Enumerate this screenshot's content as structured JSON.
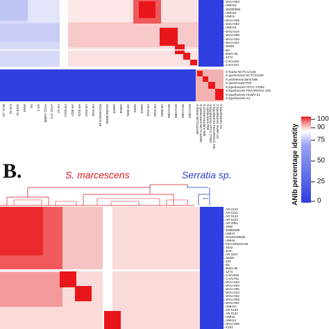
{
  "panel_b": {
    "letter": "B.",
    "group_marcescens": "S. marcescens",
    "group_serratia": "Serratia sp."
  },
  "legend": {
    "title": "ANIb percentage identity",
    "ticks": [
      "100",
      "90",
      "75",
      "50",
      "25",
      "0"
    ],
    "colors": {
      "high": "#e8161b",
      "mid": "#ffffff",
      "low": "#2f3fe0"
    }
  },
  "panel_a": {
    "row_labels_top": [
      "WVU-003",
      "UMH10",
      "SE000094",
      "UMH12",
      "UMH1",
      "WVU-005",
      "WVU-002",
      "UMH10",
      "WVU-010",
      "WVU-008",
      "WVU-004",
      "WVU-001",
      "SM39",
      "B3",
      "BWH-35",
      "1274",
      "CAV1492",
      "CAV1761"
    ],
    "row_labels_bottom": [
      "S ficaria NCTC12148",
      "S quinivorans NCTC13188",
      "S proteamaculans 568",
      "S quinivorans P60",
      "S liquefaciens ATCC 27592",
      "S liquefaciens FDAARGOS 125",
      "S liquefaciens HUMV-21",
      "S liquefaciens S1"
    ],
    "col_labels_left": [
      "NCG_14",
      "CIS-44",
      "2016-12",
      "WW4",
      "S4",
      "SS-1",
      "ATCC 13880",
      "ATCC 274",
      "AS-12",
      "AR 0124",
      "AR 0027",
      "AR 0121",
      "AR 0122",
      "AR 0131",
      "FDAARGOS 65",
      "SmUNAM836",
      "UMH9",
      "UMH8",
      "AR 0091",
      "SM25",
      "UMH3",
      "AR 0141",
      "AR 0133",
      "AR 0093",
      "WVU-009",
      "WVU-008",
      "WVU-005",
      "WVU-004"
    ],
    "col_labels_right": [
      "S ficaria NCTC12148",
      "S quinivorans NCTC13188",
      "S proteamaculans 568",
      "S quinivorans P60",
      "S liquefaciens ATCC 27592",
      "S liquefaciens FDAARGOS 125",
      "S liquefaciens HUMV-21",
      "S liquefaciens S1"
    ]
  },
  "panel_b_labels": [
    "AR 0122",
    "AR 0121",
    "AR 0123",
    "AR 0124",
    "AR 0091",
    "1692",
    "SMB2099",
    "UMH3",
    "SmUNAM836",
    "UMH9",
    "FDAARGOS 65",
    "1624",
    "114c",
    "AR 0027",
    "SM39",
    "332",
    "B3",
    "BWH-35",
    "1274",
    "CAV1492",
    "CAV1761",
    "WVU-004",
    "WVU-003",
    "WVU-005",
    "WVU-010",
    "WVU-002",
    "WVU-008",
    "WVU-001",
    "UMH10",
    "AR 0130",
    "AR 0131",
    "UMH8",
    "UMH12",
    "WVU-009",
    "K201"
  ]
}
